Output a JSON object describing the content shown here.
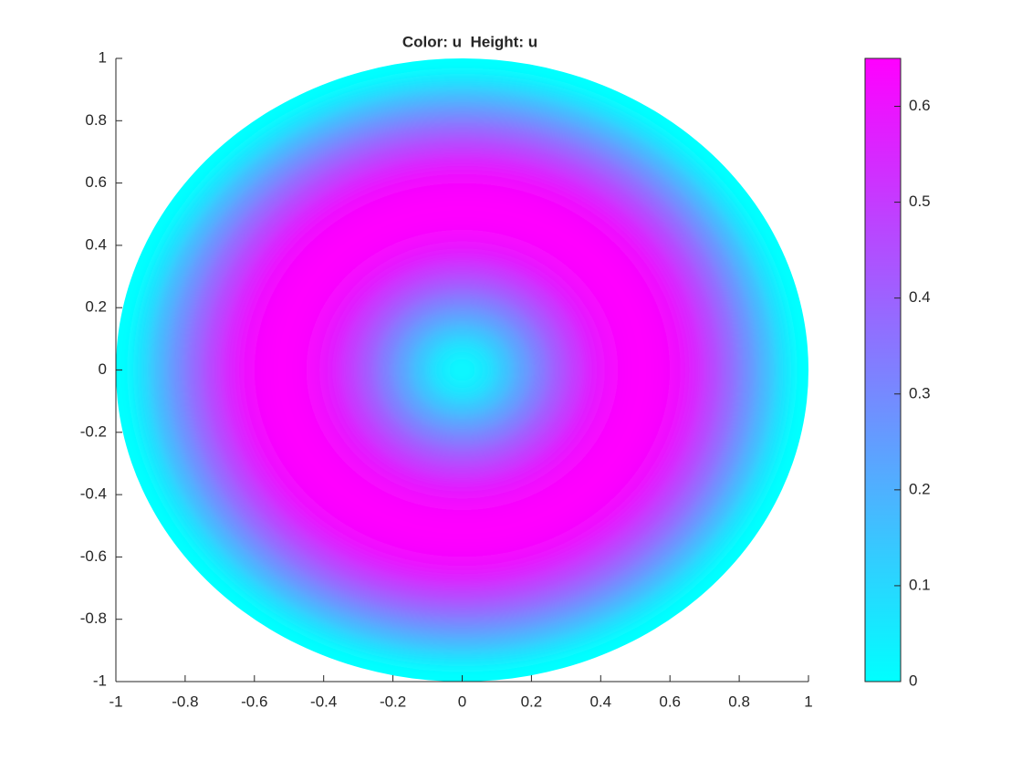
{
  "chart_data": {
    "type": "radial-surface",
    "title": "Color: u  Height: u",
    "r": [
      0,
      0.05,
      0.1,
      0.15,
      0.2,
      0.25,
      0.3,
      0.35,
      0.4,
      0.45,
      0.5,
      0.55,
      0.6,
      0.65,
      0.7,
      0.75,
      0.8,
      0.85,
      0.9,
      0.95,
      1
    ],
    "values": [
      0,
      0.02,
      0.07,
      0.15,
      0.24,
      0.33,
      0.42,
      0.5,
      0.57,
      0.62,
      0.645,
      0.65,
      0.64,
      0.61,
      0.55,
      0.47,
      0.38,
      0.28,
      0.18,
      0.08,
      0
    ],
    "xlim": [
      -1,
      1
    ],
    "ylim": [
      -1,
      1
    ],
    "xticks": [
      -1,
      -0.8,
      -0.6,
      -0.4,
      -0.2,
      0,
      0.2,
      0.4,
      0.6,
      0.8,
      1
    ],
    "yticks": [
      -1,
      -0.8,
      -0.6,
      -0.4,
      -0.2,
      0,
      0.2,
      0.4,
      0.6,
      0.8,
      1
    ],
    "clim": [
      0,
      0.65
    ],
    "cticks": [
      0,
      0.1,
      0.2,
      0.3,
      0.4,
      0.5,
      0.6
    ],
    "colormap": [
      "#00ffff",
      "#ff00ff"
    ]
  }
}
